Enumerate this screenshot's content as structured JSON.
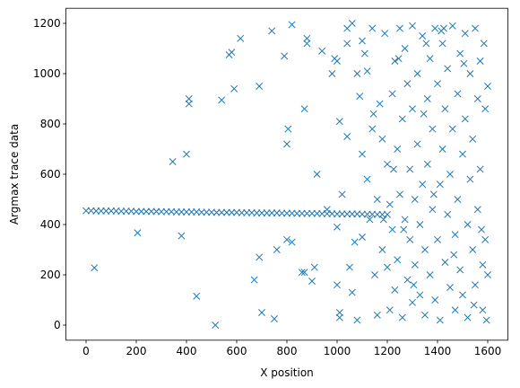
{
  "chart_data": {
    "type": "scatter",
    "xlabel": "X position",
    "ylabel": "Argmax trace data",
    "xlim": [
      -80,
      1680
    ],
    "ylim": [
      -60,
      1260
    ],
    "xticks": [
      0,
      200,
      400,
      600,
      800,
      1000,
      1200,
      1400,
      1600
    ],
    "yticks": [
      0,
      200,
      400,
      600,
      800,
      1000,
      1200
    ],
    "marker": "x",
    "series": [
      {
        "color": "#1f77b4",
        "x": [
          0,
          20,
          40,
          60,
          80,
          100,
          120,
          140,
          160,
          180,
          200,
          220,
          240,
          260,
          280,
          300,
          320,
          340,
          360,
          380,
          400,
          420,
          440,
          460,
          480,
          500,
          520,
          540,
          560,
          580,
          600,
          620,
          640,
          660,
          680,
          700,
          720,
          740,
          760,
          780,
          800,
          820,
          840,
          860,
          880,
          900,
          920,
          940,
          960,
          980,
          1000,
          1020,
          1040,
          1060,
          1080,
          1100,
          1120,
          1140,
          1160,
          1180,
          1200,
          33,
          205,
          380,
          345,
          400,
          410,
          410,
          440,
          515,
          540,
          570,
          580,
          590,
          615,
          670,
          690,
          690,
          700,
          740,
          750,
          760,
          790,
          800,
          800,
          805,
          820,
          820,
          860,
          870,
          870,
          880,
          880,
          900,
          910,
          920,
          940,
          960,
          980,
          990,
          1000,
          1000,
          1000,
          1010,
          1010,
          1010,
          1020,
          1040,
          1040,
          1040,
          1050,
          1060,
          1060,
          1070,
          1080,
          1080,
          1090,
          1100,
          1100,
          1100,
          1110,
          1120,
          1120,
          1130,
          1140,
          1140,
          1150,
          1160,
          1160,
          1170,
          1180,
          1180,
          1190,
          1200,
          1200,
          1210,
          1210,
          1220,
          1220,
          1230,
          1230,
          1240,
          1240,
          1250,
          1250,
          1260,
          1260,
          1270,
          1270,
          1280,
          1280,
          1290,
          1290,
          1300,
          1300,
          1300,
          1310,
          1310,
          1320,
          1320,
          1330,
          1330,
          1340,
          1340,
          1350,
          1350,
          1360,
          1360,
          1370,
          1370,
          1380,
          1380,
          1390,
          1390,
          1400,
          1400,
          1410,
          1410,
          1420,
          1420,
          1430,
          1430,
          1440,
          1440,
          1450,
          1450,
          1460,
          1460,
          1470,
          1470,
          1480,
          1480,
          1490,
          1490,
          1500,
          1500,
          1510,
          1510,
          1520,
          1520,
          1530,
          1530,
          1540,
          1540,
          1550,
          1550,
          1560,
          1560,
          1570,
          1570,
          1580,
          1580,
          1590,
          1590,
          1595,
          1600,
          1600,
          1585,
          1575,
          1545,
          1505,
          1465,
          1425,
          1385,
          1345,
          1305,
          1265,
          1225,
          1185,
          1145,
          1245,
          1355,
          1415
        ],
        "values": [
          455,
          455,
          454,
          454,
          454,
          454,
          454,
          453,
          453,
          453,
          452,
          452,
          452,
          452,
          452,
          451,
          451,
          451,
          450,
          450,
          450,
          450,
          450,
          449,
          449,
          449,
          448,
          448,
          448,
          448,
          448,
          447,
          447,
          447,
          446,
          446,
          446,
          446,
          446,
          445,
          445,
          445,
          444,
          444,
          444,
          444,
          444,
          443,
          443,
          443,
          442,
          442,
          442,
          442,
          442,
          441,
          441,
          441,
          440,
          440,
          440,
          228,
          367,
          355,
          650,
          680,
          880,
          900,
          115,
          0,
          895,
          1075,
          1085,
          940,
          1140,
          180,
          270,
          950,
          50,
          1170,
          25,
          300,
          1070,
          340,
          720,
          780,
          1195,
          330,
          210,
          860,
          210,
          1140,
          1120,
          175,
          230,
          600,
          1090,
          460,
          1000,
          1060,
          1050,
          390,
          160,
          810,
          50,
          30,
          520,
          1180,
          1120,
          750,
          230,
          1200,
          130,
          330,
          1000,
          20,
          910,
          1130,
          680,
          350,
          1080,
          580,
          1010,
          420,
          1180,
          780,
          200,
          500,
          40,
          880,
          740,
          300,
          1160,
          640,
          230,
          480,
          60,
          920,
          380,
          1050,
          140,
          700,
          260,
          1180,
          520,
          820,
          30,
          1100,
          420,
          960,
          180,
          620,
          340,
          1190,
          860,
          90,
          500,
          240,
          1000,
          720,
          400,
          120,
          1150,
          560,
          300,
          40,
          900,
          640,
          1060,
          200,
          780,
          460,
          1180,
          100,
          960,
          340,
          560,
          20,
          1120,
          700,
          250,
          860,
          1020,
          440,
          150,
          600,
          1190,
          780,
          360,
          60,
          920,
          500,
          1080,
          220,
          680,
          120,
          1160,
          820,
          400,
          30,
          1000,
          580,
          300,
          740,
          1180,
          160,
          900,
          460,
          1050,
          620,
          240,
          60,
          860,
          340,
          20,
          950,
          200,
          1120,
          380,
          80,
          1040,
          280,
          1180,
          520,
          840,
          160,
          380,
          620,
          420,
          840,
          1060,
          1120,
          1170
        ]
      }
    ]
  }
}
